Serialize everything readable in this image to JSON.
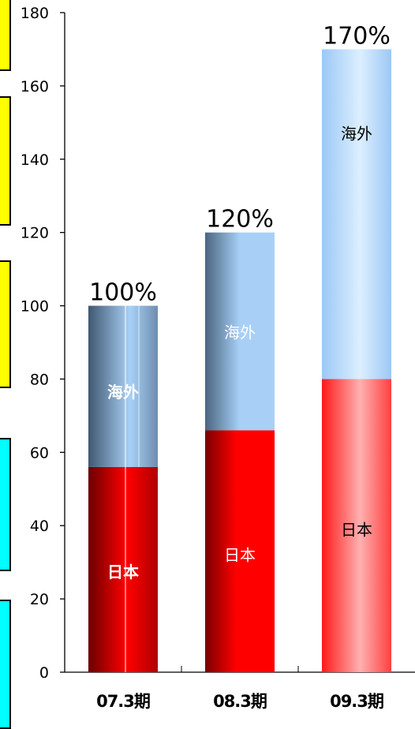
{
  "chart_data": {
    "type": "bar",
    "stacked": true,
    "categories": [
      "07.3期",
      "08.3期",
      "09.3期"
    ],
    "series": [
      {
        "name": "日本",
        "values": [
          56,
          66,
          80
        ]
      },
      {
        "name": "海外",
        "values": [
          44,
          54,
          90
        ]
      }
    ],
    "totals_labels": [
      "100%",
      "120%",
      "170%"
    ],
    "ylim": [
      0,
      180
    ],
    "yticks": [
      0,
      20,
      40,
      60,
      80,
      100,
      120,
      140,
      160,
      180
    ],
    "title": "",
    "xlabel": "",
    "ylabel": "",
    "grid": false
  },
  "colors": {
    "japan_dark": "#8a0000",
    "japan_bright": "#ff0000",
    "japan_light": "#ffa6a6",
    "overseas_dark": "#4e6a85",
    "overseas_light": "#a8d0f7",
    "overseas_pale": "#cfe6ff",
    "side_yellow": "#ffff00",
    "side_cyan": "#00ffff"
  }
}
